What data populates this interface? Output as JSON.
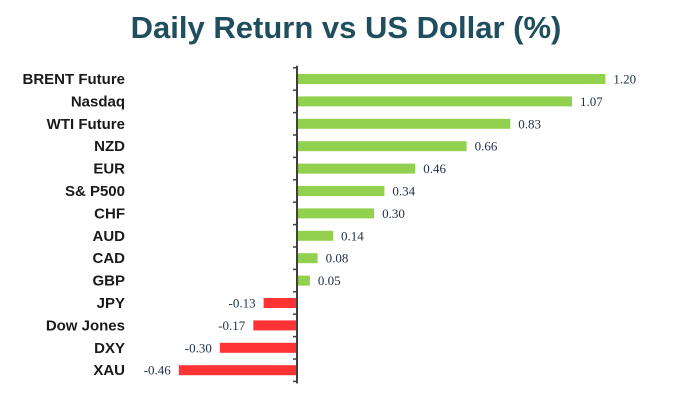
{
  "chart_data": {
    "type": "bar",
    "orientation": "horizontal",
    "title": "Daily Return vs US Dollar (%)",
    "categories": [
      "BRENT Future",
      "Nasdaq",
      "WTI Future",
      "NZD",
      "EUR",
      "S& P500",
      "CHF",
      "AUD",
      "CAD",
      "GBP",
      "JPY",
      "Dow Jones",
      "DXY",
      "XAU"
    ],
    "values": [
      1.2,
      1.07,
      0.83,
      0.66,
      0.46,
      0.34,
      0.3,
      0.14,
      0.08,
      0.05,
      -0.13,
      -0.17,
      -0.3,
      -0.46
    ],
    "value_labels": [
      "1.20",
      "1.07",
      "0.83",
      "0.66",
      "0.46",
      "0.34",
      "0.30",
      "0.14",
      "0.08",
      "0.05",
      "-0.13",
      "-0.17",
      "-0.30",
      "-0.46"
    ],
    "colors": {
      "positive": "#92d050",
      "negative": "#ff3333",
      "axis": "#404040",
      "title": "#1f4e5f"
    },
    "xlim": [
      -0.46,
      1.2
    ],
    "grid": false,
    "legend": "none"
  }
}
